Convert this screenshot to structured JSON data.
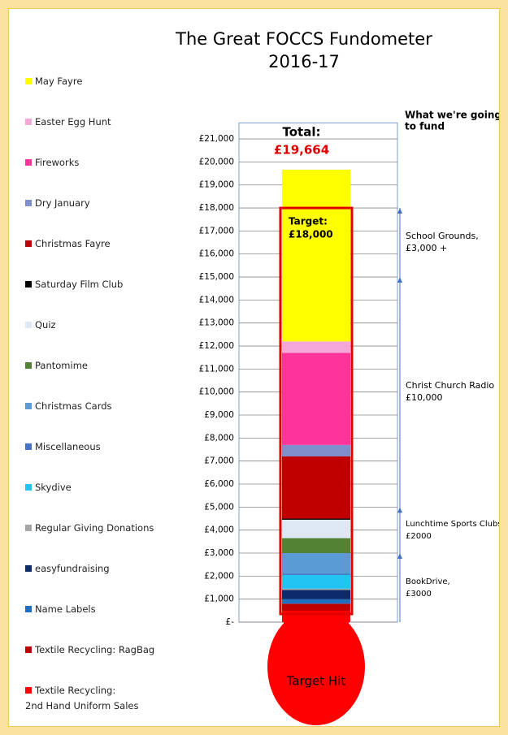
{
  "chart_data": {
    "type": "bar",
    "stacked": true,
    "title": "The Great FOCCS Fundometer",
    "subtitle": "2016-17",
    "ylim": [
      0,
      21700
    ],
    "yticks": [
      {
        "value": 0,
        "label": "£-"
      },
      {
        "value": 1000,
        "label": "£1,000"
      },
      {
        "value": 2000,
        "label": "£2,000"
      },
      {
        "value": 3000,
        "label": "£3,000"
      },
      {
        "value": 4000,
        "label": "£4,000"
      },
      {
        "value": 5000,
        "label": "£5,000"
      },
      {
        "value": 6000,
        "label": "£6,000"
      },
      {
        "value": 7000,
        "label": "£7,000"
      },
      {
        "value": 8000,
        "label": "£8,000"
      },
      {
        "value": 9000,
        "label": "£9,000"
      },
      {
        "value": 10000,
        "label": "£10,000"
      },
      {
        "value": 11000,
        "label": "£11,000"
      },
      {
        "value": 12000,
        "label": "£12,000"
      },
      {
        "value": 13000,
        "label": "£13,000"
      },
      {
        "value": 14000,
        "label": "£14,000"
      },
      {
        "value": 15000,
        "label": "£15,000"
      },
      {
        "value": 16000,
        "label": "£16,000"
      },
      {
        "value": 17000,
        "label": "£17,000"
      },
      {
        "value": 18000,
        "label": "£18,000"
      },
      {
        "value": 19000,
        "label": "£19,000"
      },
      {
        "value": 20000,
        "label": "£20,000"
      },
      {
        "value": 21000,
        "label": "£21,000"
      }
    ],
    "grid": true,
    "series": [
      {
        "name": "May Fayre",
        "color": "#ffff00",
        "values": [
          7464
        ]
      },
      {
        "name": "Easter Egg Hunt",
        "color": "#f4a7d8",
        "values": [
          500
        ]
      },
      {
        "name": "Fireworks",
        "color": "#ff3399",
        "values": [
          4000
        ]
      },
      {
        "name": "Dry January",
        "color": "#7f8fcc",
        "values": [
          500
        ]
      },
      {
        "name": "Christmas Fayre",
        "color": "#c00000",
        "values": [
          2700
        ]
      },
      {
        "name": "Saturday Film Club",
        "color": "#000000",
        "values": [
          50
        ]
      },
      {
        "name": "Quiz",
        "color": "#dde8f4",
        "values": [
          800
        ]
      },
      {
        "name": "Pantomime",
        "color": "#548235",
        "values": [
          650
        ]
      },
      {
        "name": "Christmas Cards",
        "color": "#5b9bd5",
        "values": [
          900
        ]
      },
      {
        "name": "Miscellaneous",
        "color": "#4472c4",
        "values": [
          50
        ]
      },
      {
        "name": "Skydive",
        "color": "#22c4f4",
        "values": [
          600
        ]
      },
      {
        "name": "Regular Giving Donations",
        "color": "#a6a6a6",
        "values": [
          50
        ]
      },
      {
        "name": "easyfundraising",
        "color": "#0d2a6b",
        "values": [
          400
        ]
      },
      {
        "name": "Name Labels",
        "color": "#1f6fc0",
        "values": [
          200
        ]
      },
      {
        "name": "Textile Recycling: RagBag",
        "color": "#c00000",
        "values": [
          300
        ]
      },
      {
        "name": "Textile Recycling:\n2nd Hand Uniform Sales",
        "color": "#ff0000",
        "values": [
          500
        ]
      }
    ],
    "total": {
      "label": "Total:",
      "value": 19664,
      "value_label": "£19,664"
    },
    "target": {
      "label": "Target:",
      "value": 18000,
      "value_label": "£18,000",
      "hit_label": "Target Hit"
    },
    "funding_heading": [
      "What we're going",
      "to fund"
    ],
    "funds": [
      {
        "lines": [
          "BookDrive,",
          "£3000"
        ],
        "from": 0,
        "to": 3000
      },
      {
        "lines": [
          "Lunchtime Sports Clubs",
          "£2000"
        ],
        "from": 3000,
        "to": 5000
      },
      {
        "lines": [
          "Christ Church Radio",
          "£10,000"
        ],
        "from": 5000,
        "to": 15000
      },
      {
        "lines": [
          "School Grounds,",
          "£3,000 +"
        ],
        "from": 15000,
        "to": 18000
      }
    ]
  }
}
